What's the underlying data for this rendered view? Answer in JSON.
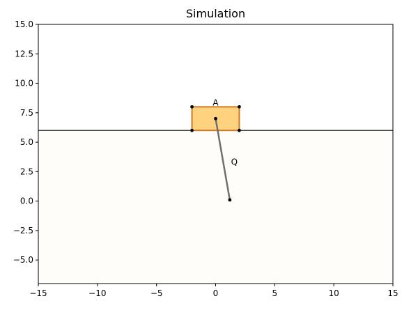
{
  "chart_data": {
    "type": "scatter",
    "title": "Simulation",
    "xlim": [
      -15,
      15
    ],
    "ylim": [
      -7,
      15
    ],
    "x_ticks": [
      -15,
      -10,
      -5,
      0,
      5,
      10,
      15
    ],
    "y_ticks": [
      -5.0,
      -2.5,
      0.0,
      2.5,
      5.0,
      7.5,
      10.0,
      12.5,
      15.0
    ],
    "x_tick_labels": [
      "−15",
      "−10",
      "−5",
      "0",
      "5",
      "10",
      "15"
    ],
    "y_tick_labels": [
      "−5.0",
      "−2.5",
      "0.0",
      "2.5",
      "5.0",
      "7.5",
      "10.0",
      "12.5",
      "15.0"
    ],
    "grid": false,
    "ground_level": 6.0,
    "box": {
      "label": "A",
      "x": [
        -2,
        2
      ],
      "y": [
        6,
        8
      ],
      "fill_color": "#ffd280",
      "edge_color": "#cc7a26",
      "corners": [
        [
          -2,
          6
        ],
        [
          2,
          6
        ],
        [
          2,
          8
        ],
        [
          -2,
          8
        ]
      ]
    },
    "pendulum": {
      "label": "Q",
      "pivot": [
        0,
        7
      ],
      "bob": [
        1.2,
        0.1
      ],
      "rod_color": "#707070"
    },
    "colors": {
      "lower_region": "#fffdf9",
      "ground_line": "#000000",
      "point": "#000000"
    }
  }
}
